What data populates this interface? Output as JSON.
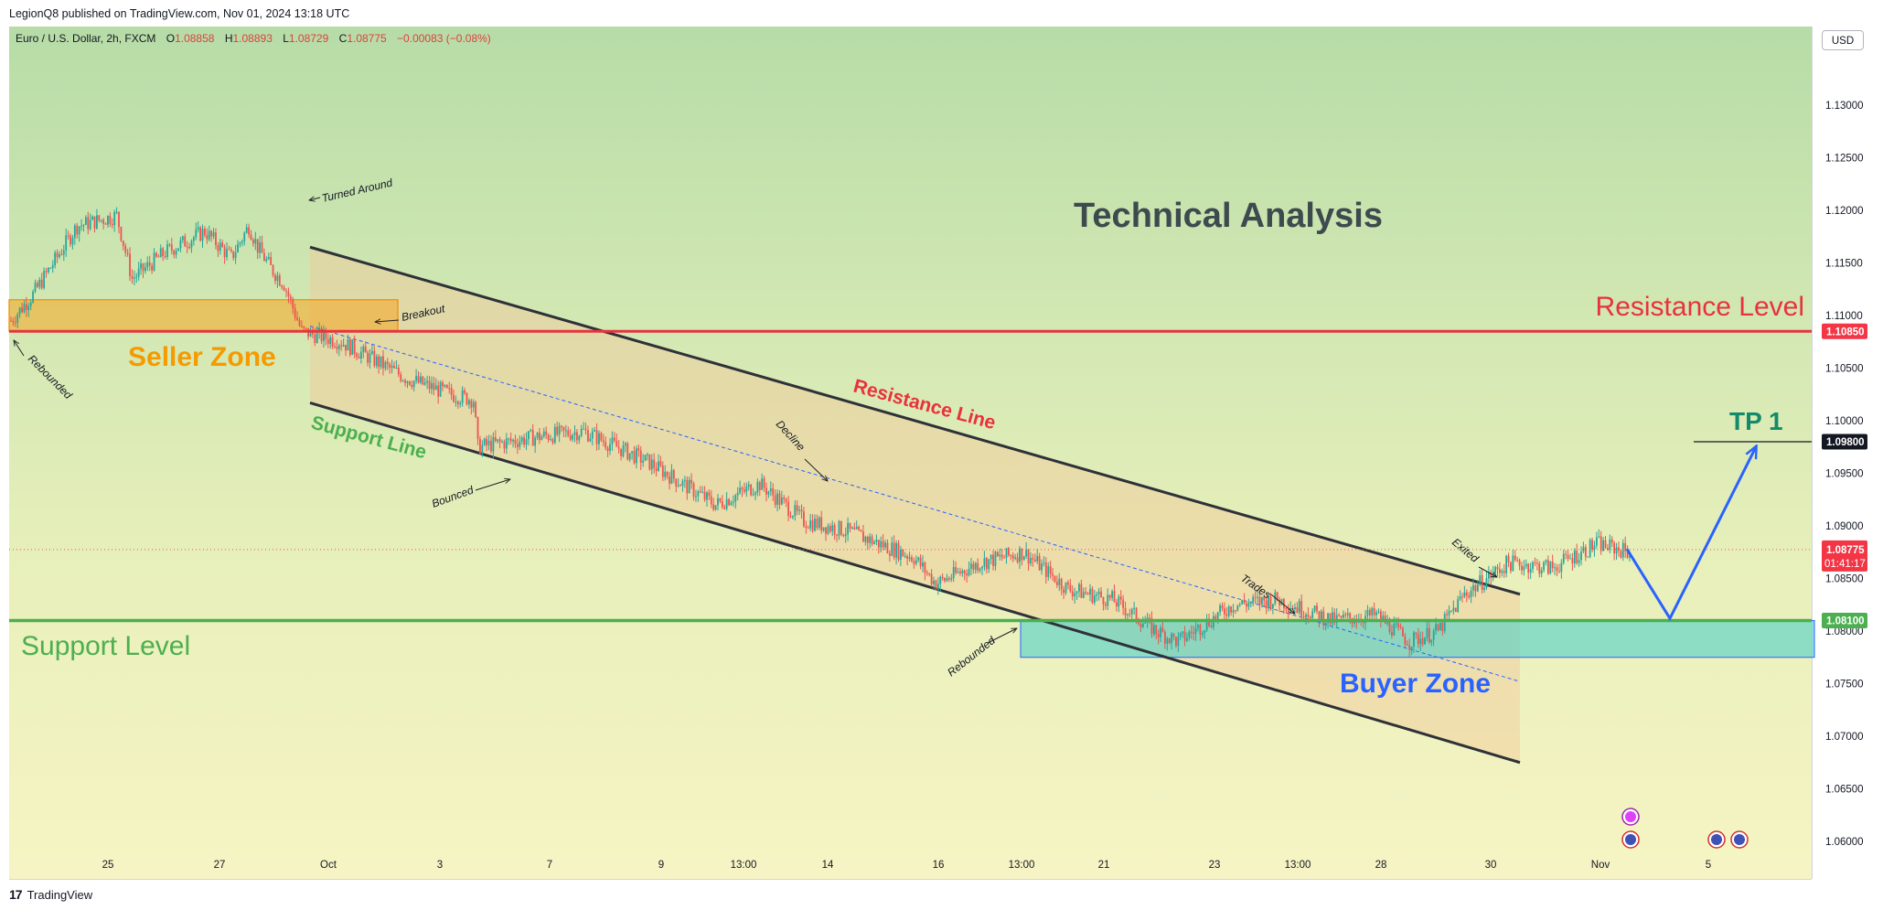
{
  "header": {
    "publisher_line": "LegionQ8 published on TradingView.com, Nov 01, 2024 13:18 UTC"
  },
  "legend": {
    "symbol": "Euro / U.S. Dollar, 2h, FXCM",
    "open_label": "O",
    "open": "1.08858",
    "high_label": "H",
    "high": "1.08893",
    "low_label": "L",
    "low": "1.08729",
    "close_label": "C",
    "close": "1.08775",
    "change": "−0.00083 (−0.08%)"
  },
  "currency_button": "USD",
  "footer": {
    "brand": "TradingView",
    "logo_mark": "17"
  },
  "colors": {
    "bullish": "#26a69a",
    "bearish": "#ef5350",
    "resistance": "#e8323e",
    "support": "#4caf50",
    "seller_zone": "#f5a623",
    "buyer_zone": "#4dd0c8",
    "projection": "#2962ff",
    "title": "#3d4a4e"
  },
  "chart_data": {
    "type": "candlestick",
    "instrument": "EUR/USD",
    "timeframe": "2h",
    "title": "Technical Analysis",
    "y_ticks": [
      "1.13000",
      "1.12500",
      "1.12000",
      "1.11500",
      "1.11000",
      "1.10500",
      "1.10000",
      "1.09500",
      "1.09000",
      "1.08500",
      "1.08000",
      "1.07500",
      "1.07000",
      "1.06500",
      "1.06000"
    ],
    "y_range": [
      1.058,
      1.134
    ],
    "x_ticks": [
      "25",
      "27",
      "Oct",
      "3",
      "7",
      "9",
      "13:00",
      "14",
      "16",
      "13:00",
      "21",
      "23",
      "13:00",
      "28",
      "30",
      "Nov",
      "5"
    ],
    "price_labels": {
      "resistance": "1.10850",
      "tp": "1.09800",
      "last": "1.08775",
      "countdown": "01:41:17",
      "support": "1.08100"
    },
    "levels": {
      "resistance": 1.1085,
      "support": 1.081,
      "tp": 1.098,
      "last": 1.08775
    },
    "channel": {
      "upper": [
        1.1165,
        1.0835
      ],
      "lower": [
        1.1017,
        1.0675
      ],
      "midline": [
        1.109,
        1.0752
      ]
    },
    "zones": {
      "seller": [
        1.1085,
        1.1115
      ],
      "buyer": [
        1.0775,
        1.081
      ]
    },
    "projection_path": [
      1.0878,
      1.0812,
      1.0975
    ],
    "annotations": {
      "seller_zone": "Seller Zone",
      "buyer_zone": "Buyer Zone",
      "resistance_level": "Resistance Level",
      "support_level": "Support Level",
      "resistance_line": "Resistance Line",
      "support_line": "Support Line",
      "tp1": "TP 1",
      "turned_around": "Turned Around",
      "breakout": "Breakout",
      "rebounded_left": "Rebounded",
      "bounced": "Bounced",
      "decline": "Decline",
      "rebounded_mid": "Rebounded",
      "trades": "Trades",
      "exited": "Exited"
    },
    "price_path_knots": [
      [
        0,
        1.1095
      ],
      [
        10,
        1.112
      ],
      [
        30,
        1.1185
      ],
      [
        48,
        1.1195
      ],
      [
        55,
        1.1135
      ],
      [
        70,
        1.116
      ],
      [
        88,
        1.118
      ],
      [
        100,
        1.1155
      ],
      [
        108,
        1.1185
      ],
      [
        112,
        1.1165
      ],
      [
        118,
        1.1145
      ],
      [
        124,
        1.113
      ],
      [
        132,
        1.1085
      ],
      [
        150,
        1.1075
      ],
      [
        180,
        1.104
      ],
      [
        200,
        1.1025
      ],
      [
        210,
        1.102
      ],
      [
        212,
        1.0975
      ],
      [
        240,
        1.0985
      ],
      [
        260,
        1.099
      ],
      [
        290,
        1.096
      ],
      [
        320,
        1.092
      ],
      [
        340,
        1.094
      ],
      [
        360,
        1.0905
      ],
      [
        380,
        1.0895
      ],
      [
        410,
        1.087
      ],
      [
        420,
        1.0845
      ],
      [
        440,
        1.0865
      ],
      [
        460,
        1.0875
      ],
      [
        480,
        1.084
      ],
      [
        500,
        1.083
      ],
      [
        520,
        1.08
      ],
      [
        530,
        1.079
      ],
      [
        555,
        1.0825
      ],
      [
        575,
        1.083
      ],
      [
        600,
        1.081
      ],
      [
        620,
        1.0815
      ],
      [
        635,
        1.079
      ],
      [
        648,
        1.08
      ],
      [
        660,
        1.0835
      ],
      [
        680,
        1.0865
      ],
      [
        700,
        1.086
      ],
      [
        720,
        1.0883
      ],
      [
        735,
        1.0875
      ]
    ]
  }
}
